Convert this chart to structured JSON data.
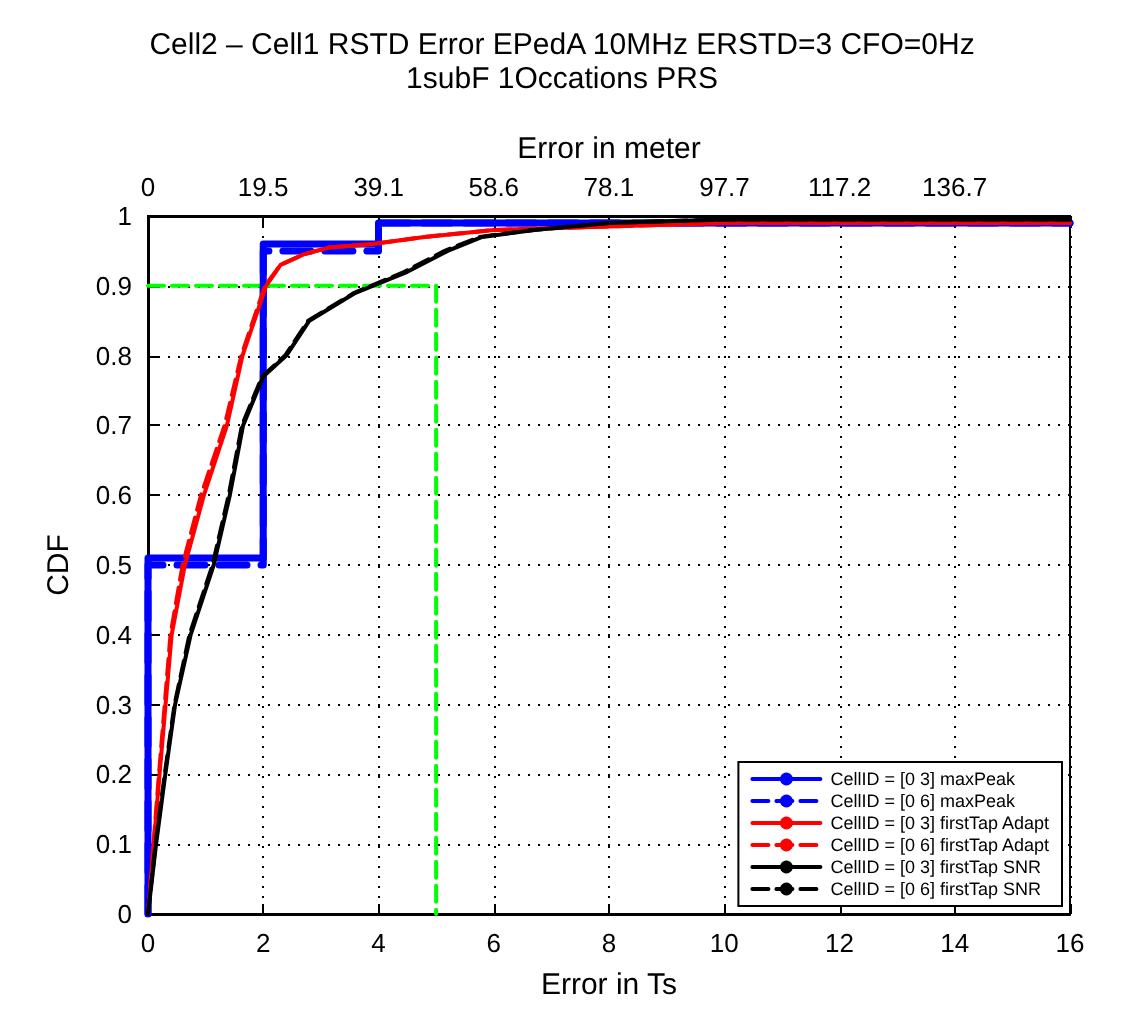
{
  "chart_data": {
    "type": "line",
    "title": "Cell2 – Cell1 RSTD Error EPedA 10MHz ERSTD=3 CFO=0Hz",
    "subtitle": "1subF 1Occations PRS",
    "xlabel": "Error in Ts",
    "ylabel": "CDF",
    "x2label": "Error in meter",
    "xlim": [
      0,
      16
    ],
    "xticks": [
      0,
      2,
      4,
      6,
      8,
      10,
      12,
      14,
      16
    ],
    "ylim": [
      0,
      1
    ],
    "yticks": [
      0,
      0.1,
      0.2,
      0.3,
      0.4,
      0.5,
      0.6,
      0.7,
      0.8,
      0.9,
      1
    ],
    "x2lim": [
      0,
      156.25
    ],
    "x2ticks": [
      0,
      19.5,
      39.1,
      58.6,
      78.1,
      97.7,
      117.2,
      136.7
    ],
    "grid": true,
    "legend": "bottom right",
    "marker": "none",
    "series": [
      {
        "name": "CellID = [0 3] maxPeak",
        "type": "step",
        "color": "#0000ff",
        "line_style": "solid",
        "x": [
          0,
          0,
          2,
          4,
          16
        ],
        "values": [
          0,
          0.51,
          0.96,
          0.99,
          0.99
        ]
      },
      {
        "name": "CellID = [0 6] maxPeak",
        "type": "step",
        "color": "#0000ff",
        "line_style": "dashed",
        "x": [
          0,
          0,
          2,
          4,
          16
        ],
        "values": [
          0,
          0.5,
          0.95,
          0.99,
          0.99
        ]
      },
      {
        "name": "CellID = [0 3] firstTap Adapt",
        "color": "#ff0000",
        "line_style": "solid",
        "x": [
          0,
          0.2,
          0.41,
          0.64,
          0.97,
          1.37,
          1.64,
          2.05,
          2.3,
          2.7,
          3.15,
          3.9,
          4.8,
          6,
          8,
          10,
          16
        ],
        "values": [
          0,
          0.2,
          0.4,
          0.5,
          0.6,
          0.7,
          0.8,
          0.9,
          0.93,
          0.945,
          0.955,
          0.96,
          0.97,
          0.98,
          0.985,
          0.99,
          0.99
        ]
      },
      {
        "name": "CellID = [0 6] firstTap Adapt",
        "color": "#ff0000",
        "line_style": "dashed",
        "x": [
          0,
          0.19,
          0.39,
          0.6,
          0.92,
          1.33,
          1.62,
          2.03,
          2.3,
          2.7,
          3.15,
          3.9,
          4.8,
          6,
          8,
          10,
          16
        ],
        "values": [
          0,
          0.2,
          0.4,
          0.5,
          0.6,
          0.7,
          0.8,
          0.9,
          0.93,
          0.945,
          0.955,
          0.96,
          0.97,
          0.98,
          0.985,
          0.99,
          0.99
        ]
      },
      {
        "name": "CellID = [0 3] firstTap SNR",
        "color": "#000000",
        "line_style": "solid",
        "x": [
          0,
          0.14,
          0.3,
          0.47,
          0.74,
          1.14,
          1.42,
          1.65,
          2,
          2.4,
          2.8,
          3.6,
          4.5,
          5.2,
          5.8,
          6.7,
          8,
          10,
          16
        ],
        "values": [
          0,
          0.1,
          0.2,
          0.3,
          0.4,
          0.5,
          0.6,
          0.7,
          0.77,
          0.8,
          0.85,
          0.89,
          0.92,
          0.95,
          0.97,
          0.98,
          0.99,
          0.995,
          0.995
        ]
      },
      {
        "name": "CellID = [0 6] firstTap SNR",
        "color": "#000000",
        "line_style": "dashed",
        "x": [
          0,
          0.13,
          0.29,
          0.46,
          0.72,
          1.12,
          1.4,
          1.63,
          1.98,
          2.38,
          2.78,
          3.58,
          4.45,
          5.15,
          5.75,
          6.7,
          8,
          10,
          16
        ],
        "values": [
          0,
          0.1,
          0.2,
          0.3,
          0.4,
          0.5,
          0.6,
          0.7,
          0.77,
          0.8,
          0.85,
          0.89,
          0.92,
          0.95,
          0.97,
          0.98,
          0.99,
          0.995,
          0.995
        ]
      },
      {
        "color": "#00ff00",
        "line_style": "dashed",
        "x": [
          0,
          5,
          5
        ],
        "values": [
          0.9,
          0.9,
          0
        ]
      }
    ]
  }
}
